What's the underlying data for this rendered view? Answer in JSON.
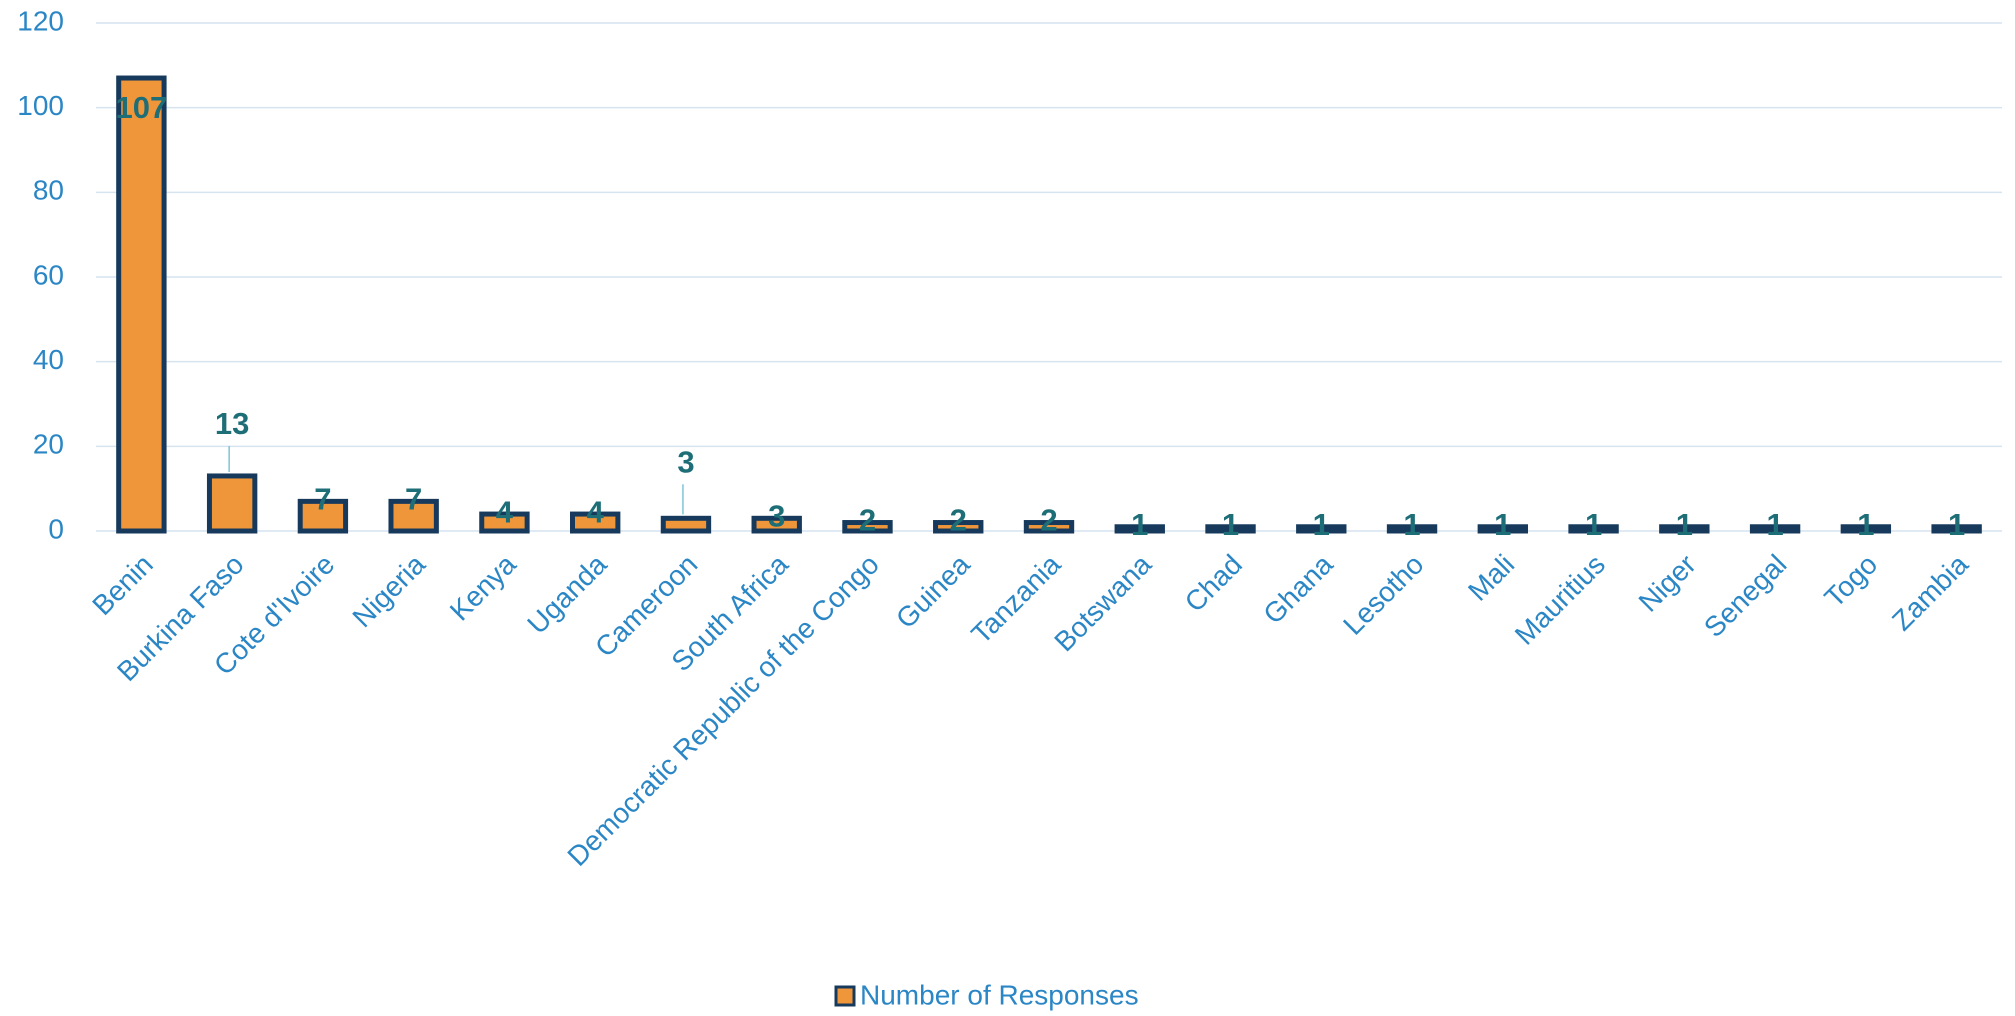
{
  "chart_data": {
    "type": "bar",
    "categories": [
      "Benin",
      "Burkina Faso",
      "Cote d'Ivoire",
      "Nigeria",
      "Kenya",
      "Uganda",
      "Cameroon",
      "South Africa",
      "Democratic Republic of the Congo",
      "Guinea",
      "Tanzania",
      "Botswana",
      "Chad",
      "Ghana",
      "Lesotho",
      "Mali",
      "Mauritius",
      "Niger",
      "Senegal",
      "Togo",
      "Zambia"
    ],
    "series": [
      {
        "name": "Number of Responses",
        "color": "#f0963a",
        "values": [
          107,
          13,
          7,
          7,
          4,
          4,
          3,
          3,
          2,
          2,
          2,
          1,
          1,
          1,
          1,
          1,
          1,
          1,
          1,
          1,
          1
        ]
      }
    ],
    "ylim": [
      0,
      120
    ],
    "yticks": [
      0,
      20,
      40,
      60,
      80,
      100,
      120
    ],
    "grid": true,
    "legend": "bottom"
  }
}
